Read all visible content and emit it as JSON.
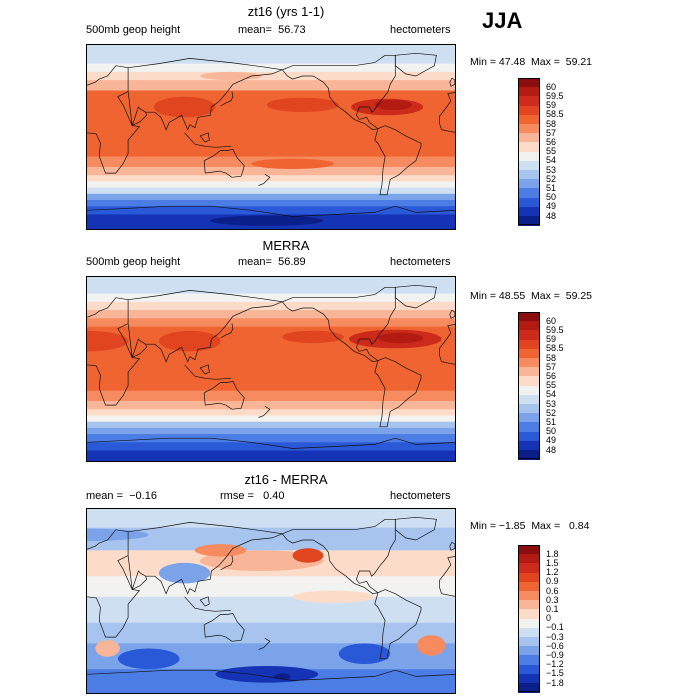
{
  "season": "JJA",
  "panels": [
    {
      "id": "model",
      "title": "zt16 (yrs 1-1)",
      "left_label": "500mb geop height",
      "stat_label": "mean=",
      "stat_value": "56.73",
      "stat2_label": "",
      "stat2_value": "",
      "units": "hectometers",
      "min_label": "Min =",
      "min_value": "47.48",
      "max_label": "Max =",
      "max_value": "59.21",
      "levels": [
        "60",
        "59.5",
        "59",
        "58.5",
        "58",
        "57",
        "56",
        "55",
        "54",
        "53",
        "52",
        "51",
        "50",
        "49",
        "48"
      ],
      "colors": [
        "#8b0d0d",
        "#b21a12",
        "#cc2a1a",
        "#e0451f",
        "#f06432",
        "#f58b5e",
        "#f9b597",
        "#fcdcc8",
        "#f2f2f0",
        "#cfdff2",
        "#a7c4ee",
        "#7aa3ea",
        "#4c7de4",
        "#2a59d8",
        "#1433b5",
        "#0b1f8a"
      ],
      "regions": [
        {
          "lat": [
            90,
            72
          ],
          "level": 9
        },
        {
          "lat": [
            72,
            64
          ],
          "level": 8
        },
        {
          "lat": [
            64,
            56
          ],
          "level": 7
        },
        {
          "lat": [
            56,
            46
          ],
          "level": 6
        },
        {
          "lat": [
            46,
            -18
          ],
          "level": 4
        },
        {
          "lat": [
            -18,
            -28
          ],
          "level": 5
        },
        {
          "lat": [
            -28,
            -36
          ],
          "level": 6
        },
        {
          "lat": [
            -36,
            -42
          ],
          "level": 7
        },
        {
          "lat": [
            -42,
            -48
          ],
          "level": 8
        },
        {
          "lat": [
            -48,
            -54
          ],
          "level": 9
        },
        {
          "lat": [
            -54,
            -60
          ],
          "level": 11
        },
        {
          "lat": [
            -60,
            -66
          ],
          "level": 12
        },
        {
          "lat": [
            -66,
            -74
          ],
          "level": 13
        },
        {
          "lat": [
            -74,
            -90
          ],
          "level": 14
        }
      ],
      "blobs": [
        {
          "lon": 95,
          "lat": 30,
          "rx": 30,
          "ry": 10,
          "level": 3
        },
        {
          "lon": 210,
          "lat": 32,
          "rx": 35,
          "ry": 7,
          "level": 3
        },
        {
          "lon": 292,
          "lat": 30,
          "rx": 35,
          "ry": 8,
          "level": 2
        },
        {
          "lon": 298,
          "lat": 32,
          "rx": 18,
          "ry": 5,
          "level": 1
        },
        {
          "lon": 140,
          "lat": 60,
          "rx": 30,
          "ry": 4,
          "level": 6
        },
        {
          "lon": 200,
          "lat": -25,
          "rx": 40,
          "ry": 5,
          "level": 4
        },
        {
          "lon": 175,
          "lat": -80,
          "rx": 55,
          "ry": 5,
          "level": 15
        }
      ]
    },
    {
      "id": "obs",
      "title": "MERRA",
      "left_label": "500mb geop height",
      "stat_label": "mean=",
      "stat_value": "56.89",
      "stat2_label": "",
      "stat2_value": "",
      "units": "hectometers",
      "min_label": "Min =",
      "min_value": "48.55",
      "max_label": "Max =",
      "max_value": "59.25",
      "levels": [
        "60",
        "59.5",
        "59",
        "58.5",
        "58",
        "57",
        "56",
        "55",
        "54",
        "53",
        "52",
        "51",
        "50",
        "49",
        "48"
      ],
      "colors": [
        "#8b0d0d",
        "#b21a12",
        "#cc2a1a",
        "#e0451f",
        "#f06432",
        "#f58b5e",
        "#f9b597",
        "#fcdcc8",
        "#f2f2f0",
        "#cfdff2",
        "#a7c4ee",
        "#7aa3ea",
        "#4c7de4",
        "#2a59d8",
        "#1433b5",
        "#0b1f8a"
      ],
      "regions": [
        {
          "lat": [
            90,
            74
          ],
          "level": 9
        },
        {
          "lat": [
            74,
            66
          ],
          "level": 8
        },
        {
          "lat": [
            66,
            58
          ],
          "level": 7
        },
        {
          "lat": [
            58,
            50
          ],
          "level": 6
        },
        {
          "lat": [
            50,
            42
          ],
          "level": 5
        },
        {
          "lat": [
            42,
            -20
          ],
          "level": 4
        },
        {
          "lat": [
            -20,
            -30
          ],
          "level": 5
        },
        {
          "lat": [
            -30,
            -38
          ],
          "level": 6
        },
        {
          "lat": [
            -38,
            -44
          ],
          "level": 7
        },
        {
          "lat": [
            -44,
            -50
          ],
          "level": 8
        },
        {
          "lat": [
            -50,
            -56
          ],
          "level": 10
        },
        {
          "lat": [
            -56,
            -62
          ],
          "level": 11
        },
        {
          "lat": [
            -62,
            -70
          ],
          "level": 12
        },
        {
          "lat": [
            -70,
            -78
          ],
          "level": 13
        },
        {
          "lat": [
            -78,
            -90
          ],
          "level": 14
        }
      ],
      "blobs": [
        {
          "lon": 0,
          "lat": 28,
          "rx": 40,
          "ry": 10,
          "level": 3
        },
        {
          "lon": 100,
          "lat": 28,
          "rx": 30,
          "ry": 10,
          "level": 3
        },
        {
          "lon": 300,
          "lat": 30,
          "rx": 45,
          "ry": 9,
          "level": 2
        },
        {
          "lon": 305,
          "lat": 31,
          "rx": 22,
          "ry": 5,
          "level": 1
        },
        {
          "lon": 220,
          "lat": 32,
          "rx": 30,
          "ry": 6,
          "level": 3
        },
        {
          "lon": 170,
          "lat": 5,
          "rx": 60,
          "ry": 12,
          "level": 4
        }
      ]
    },
    {
      "id": "diff",
      "title": "zt16 - MERRA",
      "left_label": "",
      "stat_label": "mean =",
      "stat_value": "−0.16",
      "stat2_label": "rmse =",
      "stat2_value": "0.40",
      "units": "hectometers",
      "min_label": "Min =",
      "min_value": "−1.85",
      "max_label": "Max =",
      "max_value": "0.84",
      "levels": [
        "1.8",
        "1.5",
        "1.2",
        "0.9",
        "0.6",
        "0.3",
        "0.1",
        "0",
        "−0.1",
        "−0.3",
        "−0.6",
        "−0.9",
        "−1.2",
        "−1.5",
        "−1.8"
      ],
      "colors": [
        "#8b0d0d",
        "#b21a12",
        "#cc2a1a",
        "#e0451f",
        "#f06432",
        "#f58b5e",
        "#f9b597",
        "#fcdcc8",
        "#f2f2f0",
        "#cfdff2",
        "#a7c4ee",
        "#7aa3ea",
        "#4c7de4",
        "#2a59d8",
        "#1433b5",
        "#0b1f8a"
      ],
      "regions": [
        {
          "lat": [
            90,
            72
          ],
          "level": 9
        },
        {
          "lat": [
            72,
            50
          ],
          "level": 10
        },
        {
          "lat": [
            50,
            25
          ],
          "level": 7
        },
        {
          "lat": [
            25,
            5
          ],
          "level": 8
        },
        {
          "lat": [
            5,
            -20
          ],
          "level": 9
        },
        {
          "lat": [
            -20,
            -40
          ],
          "level": 10
        },
        {
          "lat": [
            -40,
            -65
          ],
          "level": 11
        },
        {
          "lat": [
            -65,
            -90
          ],
          "level": 12
        }
      ],
      "blobs": [
        {
          "lon": 170,
          "lat": 40,
          "rx": 60,
          "ry": 10,
          "level": 6
        },
        {
          "lon": 130,
          "lat": 50,
          "rx": 25,
          "ry": 6,
          "level": 5
        },
        {
          "lon": 215,
          "lat": 45,
          "rx": 15,
          "ry": 7,
          "level": 3
        },
        {
          "lon": 0,
          "lat": 65,
          "rx": 60,
          "ry": 6,
          "level": 11
        },
        {
          "lon": 60,
          "lat": -55,
          "rx": 30,
          "ry": 10,
          "level": 13
        },
        {
          "lon": 175,
          "lat": -70,
          "rx": 50,
          "ry": 8,
          "level": 14
        },
        {
          "lon": 190,
          "lat": -72,
          "rx": 8,
          "ry": 3,
          "level": 15
        },
        {
          "lon": 270,
          "lat": -50,
          "rx": 25,
          "ry": 10,
          "level": 13
        },
        {
          "lon": 20,
          "lat": -45,
          "rx": 12,
          "ry": 8,
          "level": 6
        },
        {
          "lon": 335,
          "lat": -42,
          "rx": 14,
          "ry": 10,
          "level": 5
        },
        {
          "lon": 95,
          "lat": 28,
          "rx": 25,
          "ry": 10,
          "level": 11
        },
        {
          "lon": 240,
          "lat": 5,
          "rx": 40,
          "ry": 6,
          "level": 7
        }
      ]
    }
  ]
}
